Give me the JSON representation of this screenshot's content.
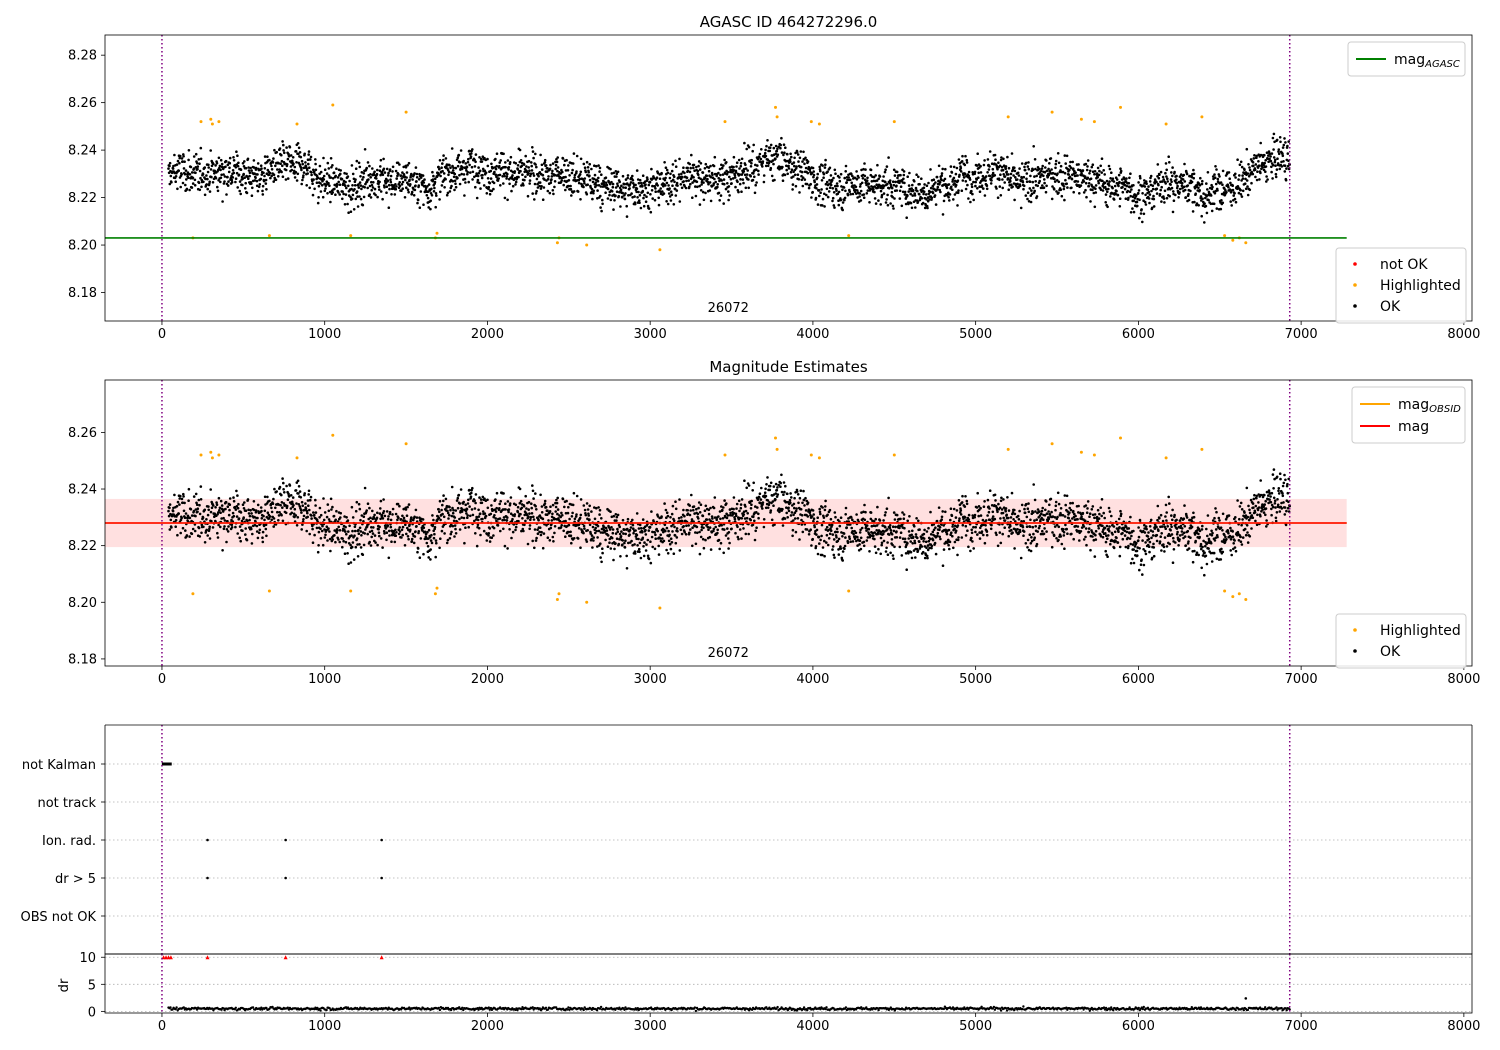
{
  "colors": {
    "ok": "#000000",
    "highlighted": "#ffa500",
    "not_ok": "#ff0000",
    "agasc_line": "#008000",
    "obsid_line": "#ffa500",
    "mag_line": "#ff0000",
    "mag_band": "#ffcccc",
    "interval_marker": "#800080",
    "grid": "#b0b0b0"
  },
  "obsid_label": "26072",
  "chart_data": [
    {
      "type": "scatter",
      "title": "AGASC ID 464272296.0",
      "xlim": [
        -350,
        8050
      ],
      "ylim": [
        8.168,
        8.2885
      ],
      "xticks": [
        0,
        1000,
        2000,
        3000,
        4000,
        5000,
        6000,
        7000,
        8000
      ],
      "xtick_labels": [
        "0",
        "1000",
        "2000",
        "3000",
        "4000",
        "5000",
        "6000",
        "7000",
        "8000"
      ],
      "yticks": [
        8.18,
        8.2,
        8.22,
        8.24,
        8.26,
        8.28
      ],
      "ytick_labels": [
        "8.18",
        "8.20",
        "8.22",
        "8.24",
        "8.26",
        "8.28"
      ],
      "interval_markers_x": [
        0,
        6930
      ],
      "hlines": [
        {
          "name": "mag_AGASC",
          "label_main": "mag",
          "label_sub": "AGASC",
          "y": 8.203,
          "x_range": [
            -350,
            7280
          ],
          "color": "#008000"
        }
      ],
      "ok_trend": {
        "x_range": [
          40,
          6930
        ],
        "mean": 8.228,
        "std": 0.0075
      },
      "legend_top": [
        "mag_AGASC"
      ],
      "legend_bottom": [
        "not OK",
        "Highlighted",
        "OK"
      ],
      "highlighted_points": [
        {
          "x": 190,
          "y": 8.203
        },
        {
          "x": 240,
          "y": 8.252
        },
        {
          "x": 300,
          "y": 8.253
        },
        {
          "x": 310,
          "y": 8.251
        },
        {
          "x": 350,
          "y": 8.252
        },
        {
          "x": 660,
          "y": 8.204
        },
        {
          "x": 830,
          "y": 8.251
        },
        {
          "x": 1050,
          "y": 8.259
        },
        {
          "x": 1160,
          "y": 8.204
        },
        {
          "x": 1500,
          "y": 8.256
        },
        {
          "x": 1680,
          "y": 8.203
        },
        {
          "x": 1690,
          "y": 8.205
        },
        {
          "x": 2430,
          "y": 8.201
        },
        {
          "x": 2440,
          "y": 8.203
        },
        {
          "x": 2610,
          "y": 8.2
        },
        {
          "x": 3060,
          "y": 8.198
        },
        {
          "x": 3460,
          "y": 8.252
        },
        {
          "x": 3770,
          "y": 8.258
        },
        {
          "x": 3780,
          "y": 8.254
        },
        {
          "x": 3990,
          "y": 8.252
        },
        {
          "x": 4040,
          "y": 8.251
        },
        {
          "x": 4220,
          "y": 8.204
        },
        {
          "x": 4500,
          "y": 8.252
        },
        {
          "x": 5200,
          "y": 8.254
        },
        {
          "x": 5470,
          "y": 8.256
        },
        {
          "x": 5650,
          "y": 8.253
        },
        {
          "x": 5730,
          "y": 8.252
        },
        {
          "x": 5890,
          "y": 8.258
        },
        {
          "x": 6170,
          "y": 8.251
        },
        {
          "x": 6390,
          "y": 8.254
        },
        {
          "x": 6530,
          "y": 8.204
        },
        {
          "x": 6580,
          "y": 8.202
        },
        {
          "x": 6620,
          "y": 8.203
        },
        {
          "x": 6660,
          "y": 8.201
        }
      ],
      "not_ok_points": []
    },
    {
      "type": "scatter",
      "title": "Magnitude Estimates",
      "xlim": [
        -350,
        8050
      ],
      "ylim": [
        8.1775,
        8.2785
      ],
      "xticks": [
        0,
        1000,
        2000,
        3000,
        4000,
        5000,
        6000,
        7000,
        8000
      ],
      "xtick_labels": [
        "0",
        "1000",
        "2000",
        "3000",
        "4000",
        "5000",
        "6000",
        "7000",
        "8000"
      ],
      "yticks": [
        8.18,
        8.2,
        8.22,
        8.24,
        8.26
      ],
      "ytick_labels": [
        "8.18",
        "8.20",
        "8.22",
        "8.24",
        "8.26"
      ],
      "interval_markers_x": [
        0,
        6930
      ],
      "hlines": [
        {
          "name": "mag_OBSID",
          "label_main": "mag",
          "label_sub": "OBSID",
          "y": 8.228,
          "x_range": [
            -350,
            7280
          ],
          "color": "#ffa500"
        },
        {
          "name": "mag",
          "label_main": "mag",
          "label_sub": "",
          "y": 8.228,
          "x_range": [
            -350,
            7280
          ],
          "color": "#ff0000"
        }
      ],
      "band": {
        "y_low": 8.2195,
        "y_high": 8.2365,
        "x_range": [
          -350,
          7280
        ]
      },
      "ok_trend": {
        "x_range": [
          40,
          6930
        ],
        "mean": 8.228,
        "std": 0.0075
      },
      "legend_top": [
        "mag_OBSID",
        "mag"
      ],
      "legend_bottom": [
        "Highlighted",
        "OK"
      ],
      "highlighted_points": "same as chart 1"
    },
    {
      "type": "flags",
      "xlim": [
        -350,
        8050
      ],
      "rows": [
        "not Kalman",
        "not track",
        "Ion. rad.",
        "dr > 5",
        "OBS not OK"
      ],
      "flag_points": [
        {
          "row": "not Kalman",
          "x_range": [
            0,
            60
          ]
        },
        {
          "row": "Ion. rad.",
          "x": [
            280,
            760,
            1350
          ]
        },
        {
          "row": "dr > 5",
          "x": [
            280,
            760,
            1350
          ]
        }
      ],
      "interval_markers_x": [
        0,
        6930
      ]
    },
    {
      "type": "scatter",
      "ylabel": "dr",
      "xlim": [
        -350,
        8050
      ],
      "ylim": [
        -0.3,
        10.6
      ],
      "yticks": [
        0,
        5,
        10
      ],
      "ytick_labels": [
        "0",
        "5",
        "10"
      ],
      "xticks": [
        0,
        1000,
        2000,
        3000,
        4000,
        5000,
        6000,
        7000,
        8000
      ],
      "xtick_labels": [
        "0",
        "1000",
        "2000",
        "3000",
        "4000",
        "5000",
        "6000",
        "7000",
        "8000"
      ],
      "dr_typical": 0.5,
      "dr_outliers": [
        {
          "x": 6660,
          "y": 2.4
        }
      ],
      "red_markers_at_10": [
        10,
        25,
        40,
        55,
        280,
        760,
        1350
      ],
      "interval_markers_x": [
        0,
        6930
      ]
    }
  ]
}
